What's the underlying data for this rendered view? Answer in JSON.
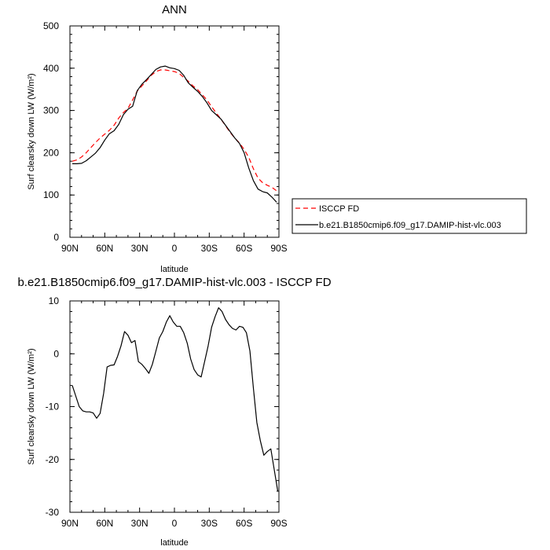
{
  "chart_data": [
    {
      "type": "line",
      "title": "ANN",
      "xlabel": "latitude",
      "ylabel": "Surf clearsky down LW (W/m²)",
      "xlim": [
        90,
        -90
      ],
      "ylim": [
        0,
        500
      ],
      "xticks": [
        90,
        60,
        30,
        0,
        -30,
        -60,
        -90
      ],
      "xtick_labels": [
        "90N",
        "60N",
        "30N",
        "0",
        "30S",
        "60S",
        "90S"
      ],
      "yticks": [
        0,
        100,
        200,
        300,
        400,
        500
      ],
      "ytick_labels": [
        "0",
        "100",
        "200",
        "300",
        "400",
        "500"
      ],
      "legend": "outside-right",
      "series": [
        {
          "name": "ISCCP FD",
          "color": "#ff0000",
          "dash": "dashed",
          "x": [
            88,
            84,
            80,
            76,
            72,
            68,
            64,
            60,
            56,
            52,
            48,
            44,
            40,
            36,
            32,
            28,
            24,
            20,
            16,
            12,
            8,
            4,
            0,
            -4,
            -8,
            -12,
            -16,
            -20,
            -24,
            -28,
            -32,
            -36,
            -40,
            -44,
            -48,
            -52,
            -56,
            -60,
            -64,
            -68,
            -72,
            -76,
            -80,
            -84,
            -88
          ],
          "values": [
            180,
            183,
            190,
            200,
            212,
            224,
            235,
            244,
            253,
            265,
            282,
            295,
            305,
            325,
            346,
            358,
            370,
            383,
            392,
            396,
            396,
            394,
            392,
            388,
            378,
            369,
            358,
            349,
            337,
            325,
            309,
            294,
            280,
            264,
            248,
            235,
            223,
            208,
            189,
            162,
            140,
            129,
            123,
            118,
            110
          ]
        },
        {
          "name": "b.e21.B1850cmip6.f09_g17.DAMIP-hist-vlc.003",
          "color": "#000000",
          "dash": "solid",
          "x": [
            88,
            84,
            80,
            76,
            72,
            68,
            64,
            60,
            56,
            52,
            48,
            44,
            40,
            36,
            32,
            28,
            24,
            20,
            16,
            12,
            8,
            4,
            0,
            -4,
            -8,
            -12,
            -16,
            -20,
            -24,
            -28,
            -32,
            -36,
            -40,
            -44,
            -48,
            -52,
            -56,
            -60,
            -64,
            -68,
            -72,
            -76,
            -80,
            -84,
            -88
          ],
          "values": [
            174,
            174,
            175,
            181,
            190,
            199,
            212,
            230,
            245,
            252,
            267,
            290,
            303,
            310,
            347,
            362,
            373,
            385,
            397,
            403,
            405,
            401,
            399,
            395,
            383,
            365,
            355,
            345,
            333,
            318,
            300,
            290,
            280,
            265,
            250,
            235,
            222,
            200,
            164,
            134,
            114,
            108,
            105,
            95,
            83
          ]
        }
      ]
    },
    {
      "type": "line",
      "title": "b.e21.B1850cmip6.f09_g17.DAMIP-hist-vlc.003 - ISCCP FD",
      "xlabel": "latitude",
      "ylabel": "Surf clearsky down LW (W/m²)",
      "xlim": [
        90,
        -90
      ],
      "ylim": [
        -30,
        10
      ],
      "xticks": [
        90,
        60,
        30,
        0,
        -30,
        -60,
        -90
      ],
      "xtick_labels": [
        "90N",
        "60N",
        "30N",
        "0",
        "30S",
        "60S",
        "90S"
      ],
      "yticks": [
        -30,
        -20,
        -10,
        0,
        10
      ],
      "ytick_labels": [
        "-30",
        "-20",
        "-10",
        "0",
        "10"
      ],
      "series": [
        {
          "color": "#000000",
          "dash": "solid",
          "x": [
            88,
            85,
            82,
            79,
            76,
            73,
            70,
            67,
            64,
            61,
            58,
            55,
            52,
            49,
            46,
            43,
            40,
            37,
            34,
            31,
            28,
            25,
            22,
            19,
            16,
            13,
            10,
            7,
            4,
            1,
            -2,
            -5,
            -8,
            -11,
            -14,
            -17,
            -20,
            -23,
            -26,
            -29,
            -32,
            -35,
            -38,
            -41,
            -44,
            -47,
            -50,
            -53,
            -56,
            -59,
            -62,
            -65,
            -68,
            -71,
            -74,
            -77,
            -80,
            -83,
            -86,
            -89
          ],
          "values": [
            -6,
            -8,
            -10,
            -10.8,
            -11,
            -11,
            -11.2,
            -12.2,
            -11.3,
            -7.5,
            -2.5,
            -2.2,
            -2.1,
            -0.5,
            1.5,
            4.2,
            3.5,
            2.1,
            2.5,
            -1.5,
            -2,
            -2.8,
            -3.7,
            -2,
            0.5,
            3,
            4.2,
            6,
            7.2,
            6,
            5.2,
            5.2,
            4,
            2,
            -1,
            -3,
            -4,
            -4.4,
            -1.5,
            1.5,
            5,
            7,
            8.7,
            8,
            6.5,
            5.5,
            4.8,
            4.5,
            5.2,
            5,
            4,
            0.5,
            -6.5,
            -13,
            -16.5,
            -19.2,
            -18.5,
            -18,
            -22,
            -26
          ]
        }
      ]
    }
  ]
}
